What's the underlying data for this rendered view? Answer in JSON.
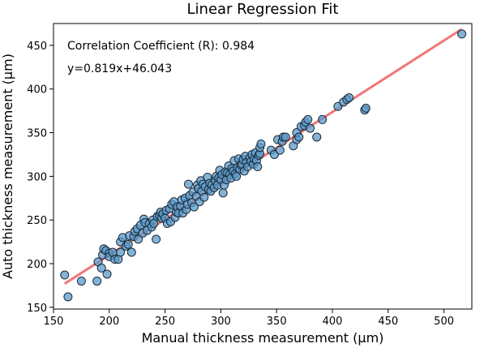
{
  "chart_data": {
    "type": "scatter",
    "title": "Linear Regression Fit",
    "xlabel": "Manual thickness measurement (µm)",
    "ylabel": "Auto thickness measurement (µm)",
    "xlim": [
      150,
      525
    ],
    "ylim": [
      148,
      475
    ],
    "xticks": [
      150,
      200,
      250,
      300,
      350,
      400,
      450,
      500
    ],
    "yticks": [
      150,
      200,
      250,
      300,
      350,
      400,
      450
    ],
    "grid": false,
    "annotations": [
      "Correlation Coefficient (R): 0.984",
      "y=0.819x+46.043"
    ],
    "fit_line": {
      "slope": 0.819,
      "intercept": 46.043,
      "x_range": [
        160,
        516
      ],
      "color": "#f07070"
    },
    "point_color": "#5b9ac8",
    "points": [
      [
        160,
        187
      ],
      [
        163,
        162
      ],
      [
        175,
        180
      ],
      [
        189,
        180
      ],
      [
        190,
        202
      ],
      [
        193,
        195
      ],
      [
        194,
        210
      ],
      [
        195,
        217
      ],
      [
        197,
        215
      ],
      [
        198,
        188
      ],
      [
        200,
        212
      ],
      [
        200,
        208
      ],
      [
        203,
        213
      ],
      [
        205,
        205
      ],
      [
        208,
        205
      ],
      [
        210,
        225
      ],
      [
        210,
        213
      ],
      [
        212,
        230
      ],
      [
        215,
        220
      ],
      [
        217,
        222
      ],
      [
        218,
        232
      ],
      [
        220,
        213
      ],
      [
        222,
        231
      ],
      [
        223,
        237
      ],
      [
        225,
        240
      ],
      [
        226,
        228
      ],
      [
        228,
        244
      ],
      [
        230,
        235
      ],
      [
        231,
        251
      ],
      [
        232,
        247
      ],
      [
        234,
        238
      ],
      [
        236,
        246
      ],
      [
        238,
        242
      ],
      [
        239,
        250
      ],
      [
        240,
        246
      ],
      [
        242,
        228
      ],
      [
        243,
        254
      ],
      [
        245,
        255
      ],
      [
        246,
        259
      ],
      [
        247,
        252
      ],
      [
        248,
        257
      ],
      [
        250,
        252
      ],
      [
        251,
        261
      ],
      [
        252,
        246
      ],
      [
        254,
        263
      ],
      [
        255,
        248
      ],
      [
        256,
        268
      ],
      [
        258,
        271
      ],
      [
        259,
        253
      ],
      [
        260,
        259
      ],
      [
        261,
        265
      ],
      [
        262,
        258
      ],
      [
        264,
        266
      ],
      [
        265,
        273
      ],
      [
        266,
        258
      ],
      [
        268,
        275
      ],
      [
        269,
        262
      ],
      [
        270,
        268
      ],
      [
        271,
        291
      ],
      [
        272,
        278
      ],
      [
        274,
        270
      ],
      [
        275,
        282
      ],
      [
        276,
        265
      ],
      [
        278,
        277
      ],
      [
        279,
        290
      ],
      [
        280,
        286
      ],
      [
        281,
        271
      ],
      [
        282,
        295
      ],
      [
        283,
        283
      ],
      [
        284,
        291
      ],
      [
        285,
        276
      ],
      [
        286,
        288
      ],
      [
        288,
        299
      ],
      [
        289,
        285
      ],
      [
        290,
        292
      ],
      [
        291,
        283
      ],
      [
        292,
        290
      ],
      [
        294,
        287
      ],
      [
        295,
        295
      ],
      [
        296,
        300
      ],
      [
        297,
        290
      ],
      [
        298,
        298
      ],
      [
        299,
        307
      ],
      [
        300,
        296
      ],
      [
        301,
        302
      ],
      [
        302,
        281
      ],
      [
        303,
        290
      ],
      [
        304,
        305
      ],
      [
        305,
        296
      ],
      [
        306,
        304
      ],
      [
        307,
        312
      ],
      [
        308,
        302
      ],
      [
        309,
        298
      ],
      [
        310,
        309
      ],
      [
        311,
        306
      ],
      [
        312,
        318
      ],
      [
        313,
        303
      ],
      [
        314,
        300
      ],
      [
        315,
        310
      ],
      [
        316,
        320
      ],
      [
        317,
        308
      ],
      [
        318,
        313
      ],
      [
        319,
        314
      ],
      [
        320,
        319
      ],
      [
        321,
        306
      ],
      [
        322,
        323
      ],
      [
        323,
        316
      ],
      [
        324,
        311
      ],
      [
        326,
        321
      ],
      [
        327,
        317
      ],
      [
        328,
        325
      ],
      [
        329,
        314
      ],
      [
        330,
        320
      ],
      [
        331,
        327
      ],
      [
        332,
        318
      ],
      [
        333,
        311
      ],
      [
        334,
        324
      ],
      [
        335,
        326
      ],
      [
        335,
        333
      ],
      [
        336,
        337
      ],
      [
        345,
        330
      ],
      [
        348,
        325
      ],
      [
        351,
        342
      ],
      [
        353,
        330
      ],
      [
        355,
        340
      ],
      [
        356,
        345
      ],
      [
        358,
        345
      ],
      [
        365,
        335
      ],
      [
        368,
        342
      ],
      [
        368,
        350
      ],
      [
        370,
        345
      ],
      [
        372,
        357
      ],
      [
        375,
        358
      ],
      [
        376,
        362
      ],
      [
        378,
        365
      ],
      [
        380,
        355
      ],
      [
        386,
        345
      ],
      [
        391,
        365
      ],
      [
        405,
        380
      ],
      [
        410,
        385
      ],
      [
        413,
        388
      ],
      [
        415,
        390
      ],
      [
        429,
        376
      ],
      [
        430,
        378
      ],
      [
        516,
        463
      ]
    ]
  }
}
